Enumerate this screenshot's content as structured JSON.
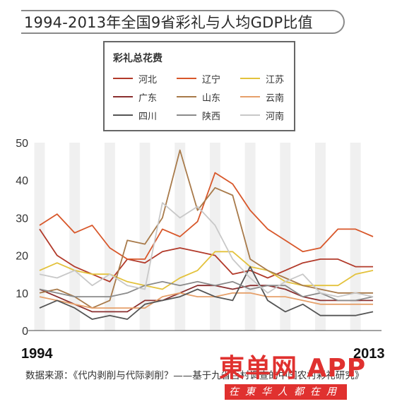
{
  "title": "1994-2013年全国9省彩礼与人均GDP比值",
  "legend_title": "彩礼总花费",
  "source_text": "数据来源：《代内剥削与代际剥削？——基于九省百村调查的中国农村彩礼研究》",
  "watermark": {
    "brand": "東单网 APP",
    "sub": "在東华人都在用"
  },
  "x_labels": {
    "start": "1994",
    "end": "2013"
  },
  "chart_data": {
    "type": "line",
    "x": [
      1994,
      1995,
      1996,
      1997,
      1998,
      1999,
      2000,
      2001,
      2002,
      2003,
      2004,
      2005,
      2006,
      2007,
      2008,
      2009,
      2010,
      2011,
      2012,
      2013
    ],
    "ylim": [
      0,
      50
    ],
    "yticks": [
      0,
      10,
      20,
      30,
      40,
      50
    ],
    "grid": "vertical-bands",
    "series": [
      {
        "name": "河北",
        "color": "#b23a2a",
        "values": [
          27,
          20,
          17,
          15,
          13,
          19,
          18,
          21,
          22,
          21,
          20,
          15,
          16,
          14,
          16,
          18,
          19,
          19,
          17,
          17
        ]
      },
      {
        "name": "辽宁",
        "color": "#d8572a",
        "values": [
          28,
          31,
          26,
          28,
          22,
          19,
          19,
          27,
          25,
          29,
          42,
          39,
          32,
          27,
          24,
          21,
          22,
          27,
          27,
          25
        ]
      },
      {
        "name": "江苏",
        "color": "#e3c23c",
        "values": [
          16,
          18,
          16,
          15,
          15,
          13,
          12,
          11,
          14,
          16,
          21,
          21,
          17,
          16,
          13,
          12,
          12,
          12,
          15,
          16
        ]
      },
      {
        "name": "广东",
        "color": "#8a2f2f",
        "values": [
          11,
          9,
          7,
          5,
          5,
          5,
          8,
          8,
          10,
          12,
          12,
          11,
          12,
          12,
          11,
          9,
          8,
          8,
          8,
          8
        ]
      },
      {
        "name": "山东",
        "color": "#a87a4a",
        "values": [
          10,
          11,
          9,
          6,
          8,
          24,
          23,
          30,
          48,
          32,
          38,
          36,
          19,
          16,
          14,
          12,
          11,
          10,
          10,
          10
        ]
      },
      {
        "name": "云南",
        "color": "#e6a06a",
        "values": [
          9,
          8,
          7,
          6,
          6,
          6,
          6,
          9,
          10,
          9,
          9,
          10,
          10,
          9,
          9,
          8,
          7,
          7,
          7,
          7
        ]
      },
      {
        "name": "四川",
        "color": "#555555",
        "values": [
          6,
          8,
          6,
          3,
          4,
          3,
          7,
          8,
          9,
          11,
          9,
          8,
          17,
          8,
          5,
          7,
          4,
          4,
          4,
          5
        ]
      },
      {
        "name": "陕西",
        "color": "#8a8a8a",
        "values": [
          11,
          10,
          9,
          9,
          9,
          10,
          12,
          13,
          12,
          13,
          12,
          13,
          11,
          12,
          12,
          9,
          10,
          8,
          8,
          9
        ]
      },
      {
        "name": "河南",
        "color": "#c8c8c8",
        "values": [
          15,
          14,
          16,
          12,
          15,
          12,
          11,
          34,
          30,
          33,
          28,
          19,
          14,
          10,
          13,
          15,
          10,
          9,
          10,
          9
        ]
      }
    ]
  }
}
